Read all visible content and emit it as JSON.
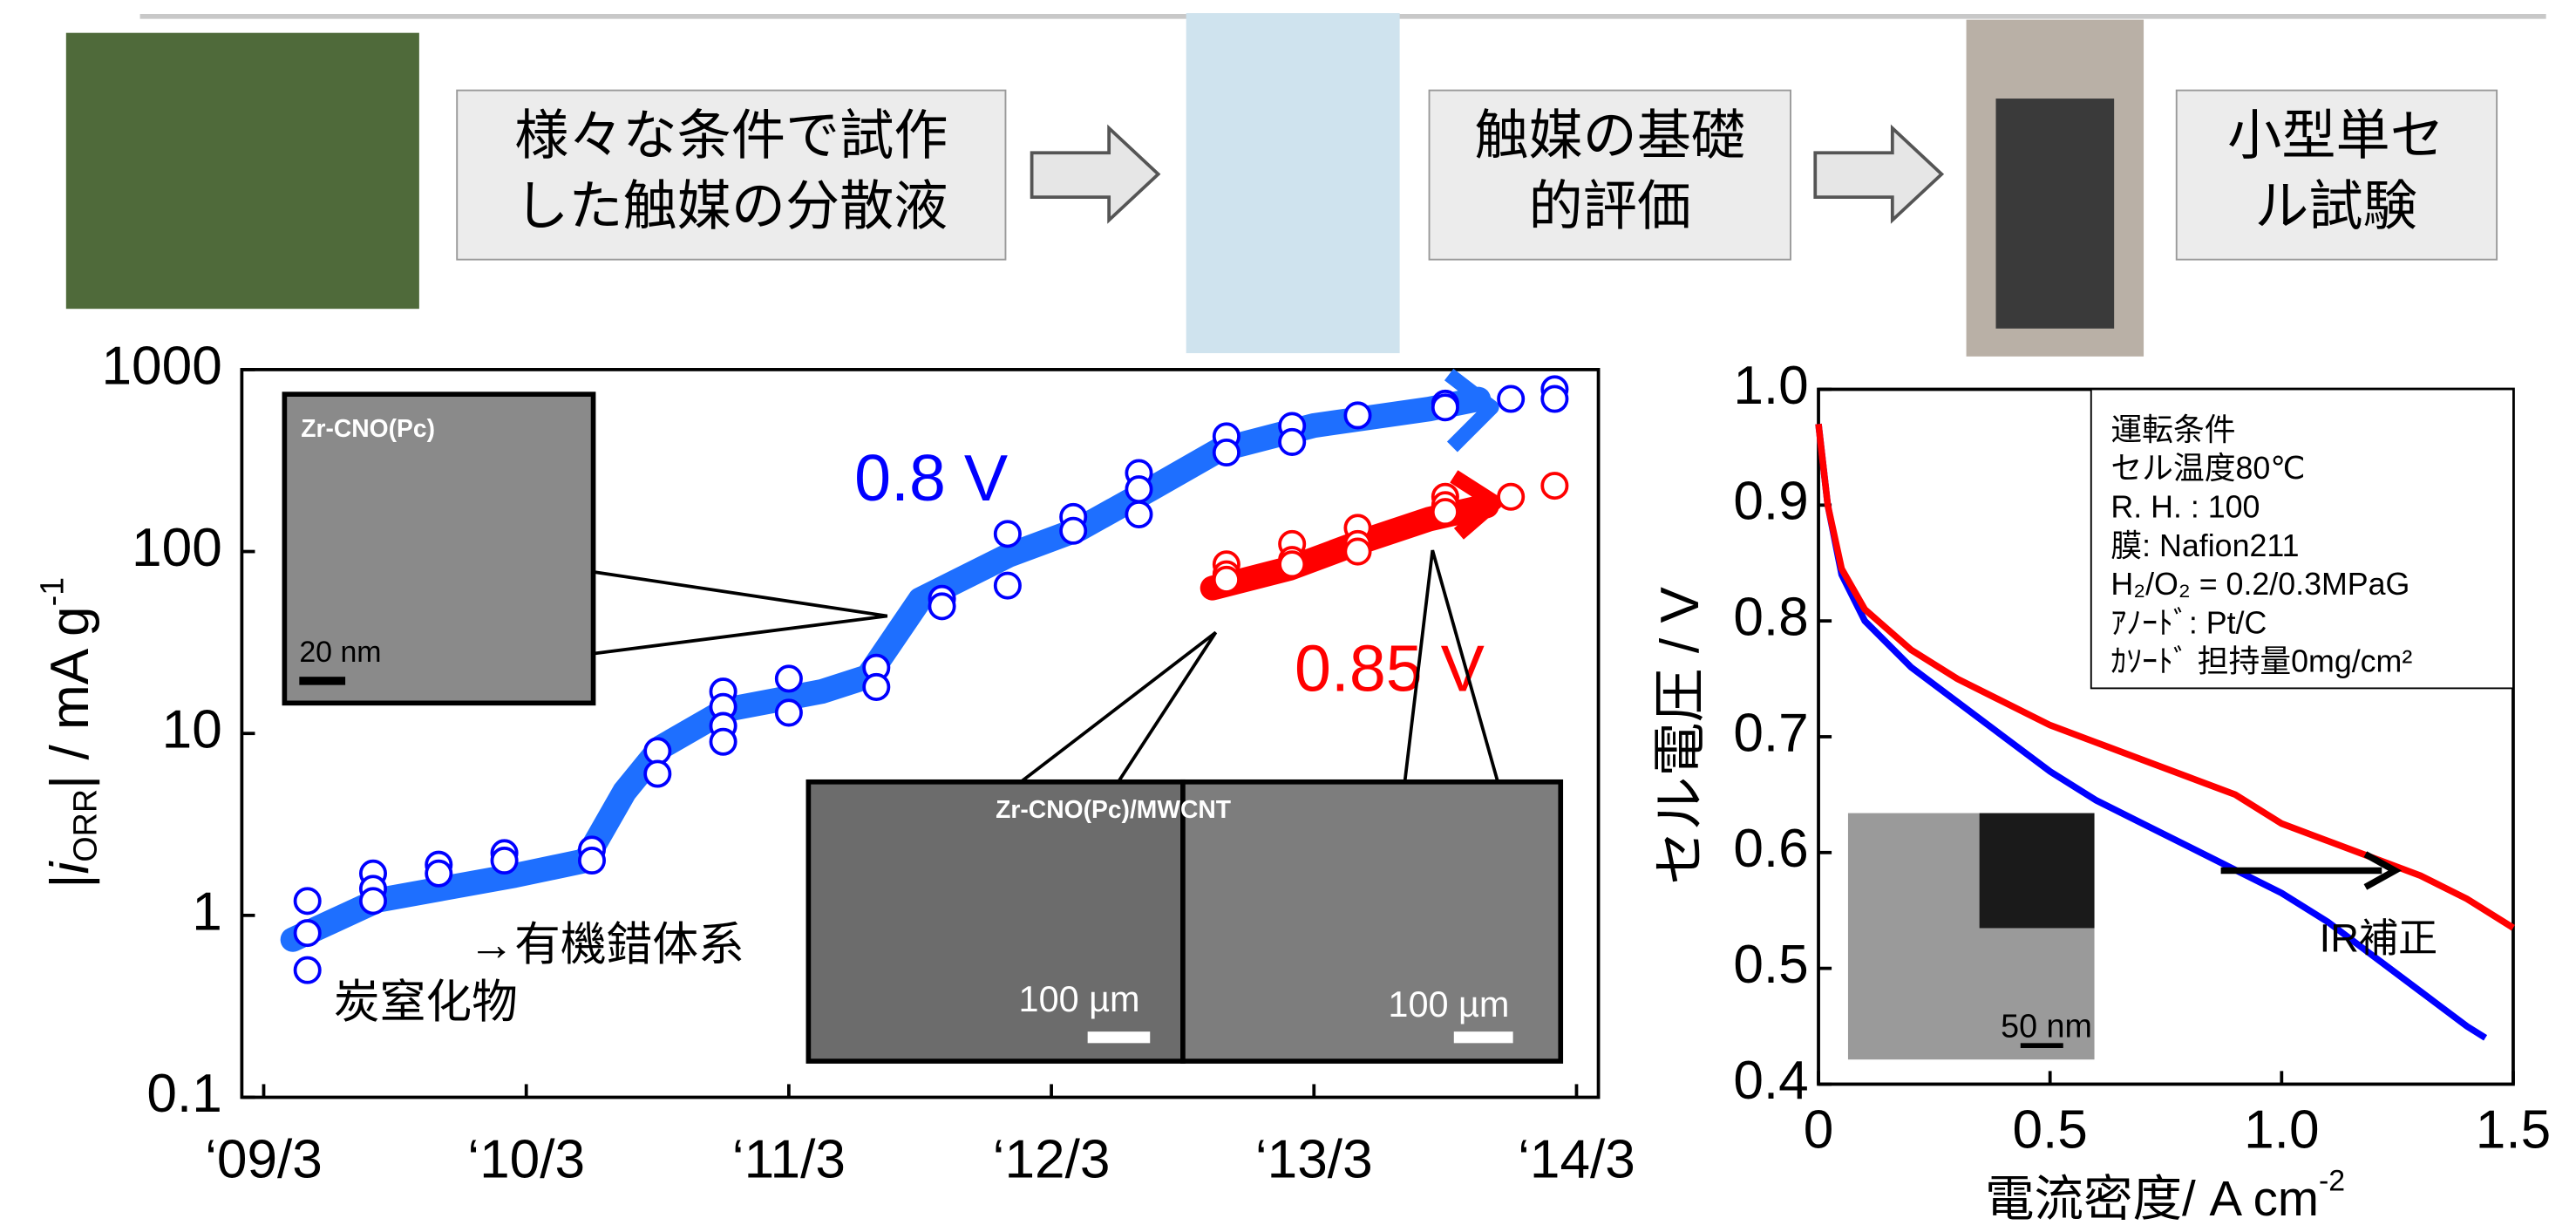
{
  "flow": {
    "steps": [
      [
        "様々な条件で試作",
        "した触媒の分散液"
      ],
      [
        "触媒の基礎",
        "的評価"
      ],
      [
        "小型単セ",
        "ル試験"
      ]
    ]
  },
  "chart_data": [
    {
      "type": "scatter",
      "log_y": true,
      "y_label": {
        "open": "|",
        "var": "i",
        "sub": "ORR",
        "unit": "| / mA g",
        "sup": "-1"
      },
      "xlim": [
        "2009-02",
        "2014-04"
      ],
      "xticks": [
        {
          "value": "2009-03",
          "label": "‘09/3"
        },
        {
          "value": "2010-03",
          "label": "‘10/3"
        },
        {
          "value": "2011-03",
          "label": "‘11/3"
        },
        {
          "value": "2012-03",
          "label": "‘12/3"
        },
        {
          "value": "2013-03",
          "label": "‘13/3"
        },
        {
          "value": "2014-03",
          "label": "‘14/3"
        }
      ],
      "ylim": [
        0.1,
        1000
      ],
      "yticks": [
        0.1,
        1,
        10,
        100,
        1000
      ],
      "series": [
        {
          "name": "0.8 V",
          "color": "#0000ff",
          "x": [
            "2009-05",
            "2009-05",
            "2009-05",
            "2009-08",
            "2009-08",
            "2009-08",
            "2009-11",
            "2009-11",
            "2010-02",
            "2010-02",
            "2010-06",
            "2010-06",
            "2010-09",
            "2010-09",
            "2010-12",
            "2010-12",
            "2010-12",
            "2010-12",
            "2011-03",
            "2011-03",
            "2011-07",
            "2011-07",
            "2011-10",
            "2011-10",
            "2012-01",
            "2012-01",
            "2012-04",
            "2012-04",
            "2012-07",
            "2012-07",
            "2012-07",
            "2012-11",
            "2012-11",
            "2013-02",
            "2013-02",
            "2013-05",
            "2013-09",
            "2013-09",
            "2013-12",
            "2014-02",
            "2014-02"
          ],
          "values": [
            1.2,
            0.8,
            0.5,
            1.7,
            1.4,
            1.2,
            1.9,
            1.7,
            2.2,
            2.0,
            2.3,
            2.0,
            8,
            6,
            17,
            14,
            11,
            9,
            20,
            13,
            23,
            18,
            55,
            50,
            125,
            65,
            155,
            130,
            270,
            220,
            160,
            430,
            350,
            490,
            400,
            560,
            650,
            620,
            690,
            780,
            690
          ]
        },
        {
          "name": "0.85 V",
          "color": "#ff0000",
          "x": [
            "2012-11",
            "2012-11",
            "2012-11",
            "2013-02",
            "2013-02",
            "2013-02",
            "2013-05",
            "2013-05",
            "2013-05",
            "2013-09",
            "2013-09",
            "2013-09",
            "2013-12",
            "2014-02"
          ],
          "values": [
            85,
            75,
            70,
            110,
            90,
            85,
            135,
            110,
            100,
            200,
            180,
            165,
            200,
            230
          ]
        }
      ],
      "annotations": {
        "organic": "→有機錯体系",
        "carbonitride": "炭窒化物",
        "inset1": "Zr-CNO(Pc)",
        "scale1": "20 nm",
        "inset2": "Zr-CNO(Pc)/MWCNT",
        "scale2": "100 µm",
        "scale3": "100 µm"
      }
    },
    {
      "type": "line",
      "x_label": {
        "text": "電流密度/ A cm",
        "sup": "-2"
      },
      "y_label": "セル電圧 / V",
      "xlim": [
        0,
        1.5
      ],
      "xticks": [
        0,
        0.5,
        {
          "value": 1,
          "label": "1.0"
        },
        1.5
      ],
      "ylim": [
        0.4,
        1
      ],
      "yticks": [
        0.4,
        0.5,
        0.6,
        0.7,
        0.8,
        0.9,
        {
          "value": 1,
          "label": "1.0"
        }
      ],
      "series": [
        {
          "color": "#0000ff",
          "x": [
            0,
            0.02,
            0.05,
            0.1,
            0.2,
            0.3,
            0.4,
            0.5,
            0.6,
            0.7,
            0.8,
            0.9,
            1.0,
            1.1,
            1.2,
            1.3,
            1.4,
            1.44
          ],
          "values": [
            0.97,
            0.9,
            0.84,
            0.8,
            0.76,
            0.73,
            0.7,
            0.67,
            0.645,
            0.625,
            0.605,
            0.585,
            0.565,
            0.54,
            0.51,
            0.48,
            0.45,
            0.44
          ]
        },
        {
          "color": "#ff0000",
          "x": [
            0,
            0.02,
            0.05,
            0.1,
            0.2,
            0.3,
            0.4,
            0.5,
            0.6,
            0.7,
            0.8,
            0.9,
            1.0,
            1.1,
            1.2,
            1.3,
            1.4,
            1.5
          ],
          "values": [
            0.97,
            0.9,
            0.845,
            0.81,
            0.775,
            0.75,
            0.73,
            0.71,
            0.695,
            0.68,
            0.665,
            0.65,
            0.625,
            0.61,
            0.595,
            0.58,
            0.56,
            0.535
          ]
        }
      ],
      "conditions": [
        "運転条件",
        "セル温度80℃",
        "R. H. : 100",
        "膜: Nafion211",
        "H₂/O₂ = 0.2/0.3MPaG",
        "ｱﾉｰﾄﾞ: Pt/C",
        "ｶｿｰﾄﾞ 担持量0mg/cm²"
      ],
      "annotations": {
        "ir": "IR補正",
        "scale": "50 nm"
      }
    }
  ]
}
